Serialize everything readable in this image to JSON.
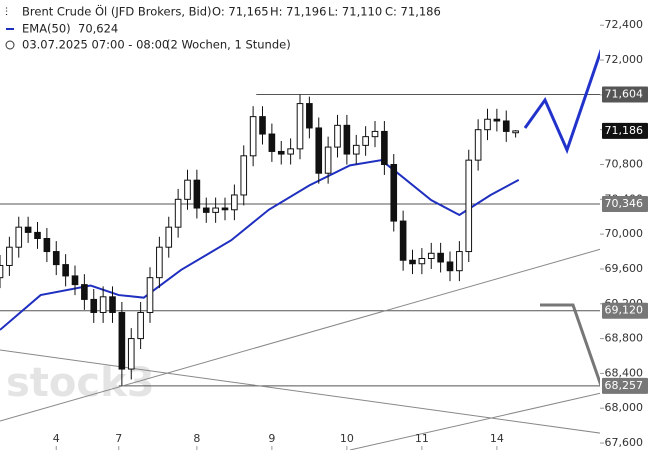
{
  "chart_data": {
    "type": "candlestick",
    "title": "Brent Crude Öl (JFD Brokers, Bid)",
    "quote": [
      "O: 71,165",
      "H: 71,196",
      "L: 71,110",
      "C: 71,186"
    ],
    "period": "03.07.2025 07:00 - 08:00",
    "interval": "(2 Wochen, 1 Stunde)",
    "watermark": "stock3",
    "x": [
      0,
      3,
      6,
      9,
      12,
      15,
      18,
      21,
      24,
      27,
      30,
      33,
      36,
      39,
      42,
      45,
      48,
      51,
      54,
      57,
      60,
      63,
      66,
      69,
      72,
      75,
      78,
      81,
      84,
      87,
      90,
      93,
      96,
      99,
      102,
      105,
      108,
      111,
      114,
      117,
      120,
      123,
      126,
      129,
      132,
      135,
      138,
      141,
      144,
      147,
      150,
      153,
      156,
      159,
      162,
      165
    ],
    "open": [
      69.5,
      69.64,
      69.85,
      70.08,
      70.02,
      69.95,
      69.8,
      69.65,
      69.52,
      69.42,
      69.25,
      69.1,
      69.28,
      69.1,
      68.45,
      68.8,
      69.1,
      69.5,
      69.85,
      70.08,
      70.4,
      70.62,
      70.3,
      70.25,
      70.3,
      70.28,
      70.45,
      70.9,
      71.35,
      71.15,
      70.95,
      70.92,
      70.98,
      71.5,
      71.22,
      70.7,
      71.0,
      71.25,
      70.92,
      71.02,
      71.12,
      71.18,
      70.8,
      70.15,
      69.7,
      69.66,
      69.72,
      69.78,
      69.68,
      69.58,
      69.8,
      70.85,
      71.2,
      71.32,
      71.3,
      71.165
    ],
    "high": [
      69.76,
      69.97,
      70.2,
      70.2,
      70.14,
      70.07,
      69.92,
      69.77,
      69.64,
      69.54,
      69.37,
      69.4,
      69.4,
      69.22,
      68.92,
      69.22,
      69.62,
      69.97,
      70.2,
      70.52,
      70.74,
      70.74,
      70.42,
      70.42,
      70.42,
      70.57,
      71.02,
      71.47,
      71.47,
      71.27,
      71.07,
      71.1,
      71.604,
      71.58,
      71.34,
      71.12,
      71.37,
      71.37,
      71.14,
      71.24,
      71.3,
      71.3,
      70.92,
      70.27,
      69.82,
      69.84,
      69.9,
      69.9,
      69.8,
      69.92,
      70.97,
      71.32,
      71.44,
      71.44,
      71.42,
      71.196
    ],
    "low": [
      69.38,
      69.52,
      69.73,
      69.9,
      69.83,
      69.68,
      69.53,
      69.4,
      69.3,
      69.13,
      68.98,
      68.98,
      68.98,
      68.257,
      68.33,
      68.68,
      68.98,
      69.38,
      69.73,
      69.96,
      70.28,
      70.18,
      70.13,
      70.13,
      70.16,
      70.16,
      70.33,
      70.78,
      71.03,
      70.83,
      70.8,
      70.8,
      70.86,
      71.1,
      70.58,
      70.58,
      70.88,
      70.8,
      70.8,
      70.9,
      71.0,
      70.68,
      70.03,
      69.58,
      69.54,
      69.54,
      69.6,
      69.56,
      69.46,
      69.46,
      69.68,
      70.73,
      71.08,
      71.18,
      71.06,
      71.11
    ],
    "close": [
      69.64,
      69.85,
      70.08,
      70.02,
      69.95,
      69.8,
      69.65,
      69.52,
      69.42,
      69.25,
      69.1,
      69.28,
      69.1,
      68.45,
      68.8,
      69.1,
      69.5,
      69.85,
      70.08,
      70.4,
      70.62,
      70.3,
      70.25,
      70.3,
      70.28,
      70.45,
      70.9,
      71.35,
      71.15,
      70.95,
      70.92,
      70.98,
      71.5,
      71.22,
      70.7,
      71.0,
      71.25,
      70.92,
      71.02,
      71.12,
      71.18,
      70.8,
      70.15,
      69.7,
      69.66,
      69.72,
      69.78,
      69.68,
      69.58,
      69.8,
      70.85,
      71.2,
      71.32,
      71.3,
      71.18,
      71.186
    ],
    "bull_color": "#ffffff",
    "bear_color": "#111111",
    "series": [
      {
        "name": "EMA(50)",
        "color": "#1f2fbf",
        "last_label": "70,624",
        "x": [
          0,
          13,
          29,
          38,
          46,
          58,
          74,
          86,
          99,
          112,
          122,
          128,
          138,
          147,
          157,
          166
        ],
        "values": [
          68.9,
          69.3,
          69.41,
          69.3,
          69.27,
          69.59,
          69.93,
          70.28,
          70.56,
          70.79,
          70.85,
          70.68,
          70.39,
          70.22,
          70.45,
          70.624
        ]
      }
    ],
    "levels": [
      {
        "value": 71.604,
        "label": "71,604",
        "color": "#555555",
        "xstart": 82
      },
      {
        "value": 71.186,
        "label": "71,186",
        "color": "#111111"
      },
      {
        "value": 70.346,
        "label": "70,346",
        "color": "#777777",
        "xstart": 0
      },
      {
        "value": 69.12,
        "label": "69,120",
        "color": "#777777",
        "xstart": 0
      },
      {
        "value": 68.257,
        "label": "68,257",
        "color": "#777777",
        "xstart": 38
      }
    ],
    "xlim": [
      0,
      192
    ],
    "xticks": [
      {
        "value": 18,
        "label": "4"
      },
      {
        "value": 38,
        "label": "7"
      },
      {
        "value": 63,
        "label": "8"
      },
      {
        "value": 87,
        "label": "9"
      },
      {
        "value": 111,
        "label": "10"
      },
      {
        "value": 135,
        "label": "11"
      },
      {
        "value": 159,
        "label": "14"
      }
    ],
    "ylim": [
      67.52,
      72.69
    ],
    "yticks": [
      {
        "value": 67.6,
        "label": "67,600"
      },
      {
        "value": 68.0,
        "label": "68,000"
      },
      {
        "value": 68.4,
        "label": "68,400"
      },
      {
        "value": 68.8,
        "label": "68,800"
      },
      {
        "value": 69.2,
        "label": "69,200"
      },
      {
        "value": 69.6,
        "label": "69,600"
      },
      {
        "value": 70.0,
        "label": "70,000"
      },
      {
        "value": 70.4,
        "label": "70,400"
      },
      {
        "value": 70.8,
        "label": "70,800"
      },
      {
        "value": 71.2,
        "label": "71,200"
      },
      {
        "value": 71.6,
        "label": "71,600"
      },
      {
        "value": 72.0,
        "label": "72,000"
      },
      {
        "value": 72.4,
        "label": "72,400"
      }
    ]
  }
}
